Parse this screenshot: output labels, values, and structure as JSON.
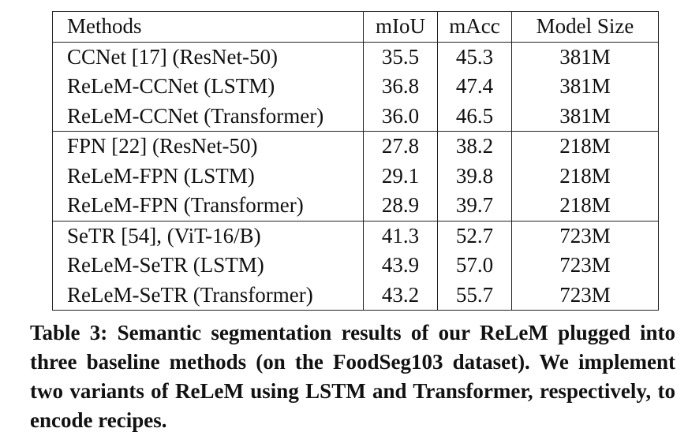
{
  "table": {
    "headers": [
      "Methods",
      "mIoU",
      "mAcc",
      "Model Size"
    ],
    "groups": [
      [
        {
          "method": "CCNet [17] (ResNet-50)",
          "miou": "35.5",
          "macc": "45.3",
          "size": "381M",
          "best": false
        },
        {
          "method": "ReLeM-CCNet (LSTM)",
          "miou": "36.8",
          "macc": "47.4",
          "size": "381M",
          "best": true
        },
        {
          "method": "ReLeM-CCNet (Transformer)",
          "miou": "36.0",
          "macc": "46.5",
          "size": "381M",
          "best": false
        }
      ],
      [
        {
          "method": "FPN [22] (ResNet-50)",
          "miou": "27.8",
          "macc": "38.2",
          "size": "218M",
          "best": false
        },
        {
          "method": "ReLeM-FPN (LSTM)",
          "miou": "29.1",
          "macc": "39.8",
          "size": "218M",
          "best": true
        },
        {
          "method": "ReLeM-FPN (Transformer)",
          "miou": "28.9",
          "macc": "39.7",
          "size": "218M",
          "best": false
        }
      ],
      [
        {
          "method": "SeTR [54], (ViT-16/B)",
          "miou": "41.3",
          "macc": "52.7",
          "size": "723M",
          "best": false
        },
        {
          "method": "ReLeM-SeTR (LSTM)",
          "miou": "43.9",
          "macc": "57.0",
          "size": "723M",
          "best": true
        },
        {
          "method": "ReLeM-SeTR (Transformer)",
          "miou": "43.2",
          "macc": "55.7",
          "size": "723M",
          "best": false
        }
      ]
    ]
  },
  "caption": "Table 3: Semantic segmentation results of our ReLeM plugged into three baseline methods (on the FoodSeg103 dataset). We implement two variants of ReLeM using LSTM and Transformer, respectively, to encode recipes."
}
